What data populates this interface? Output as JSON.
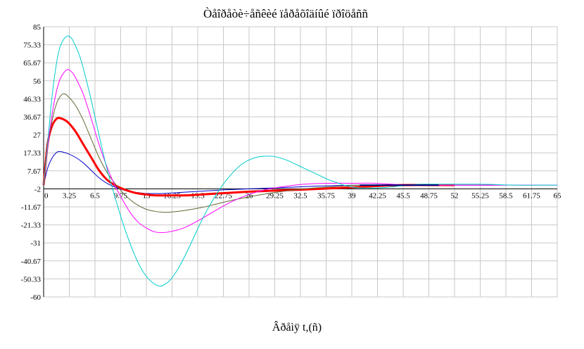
{
  "chart_data": {
    "type": "line",
    "title": "Òåîðåòè÷åñêèé ïåðåõîäíûé ïðîöåññ",
    "xlabel": "Âðåìÿ t,(ñ)",
    "ylabel": "",
    "xlim": [
      0,
      65
    ],
    "ylim": [
      -60,
      85
    ],
    "grid": true,
    "x_ticks": [
      "0",
      "3.25",
      "6.5",
      "9.75",
      "13",
      "16.25",
      "19.5",
      "22.75",
      "26",
      "29.25",
      "32.5",
      "35.75",
      "39",
      "42.25",
      "45.5",
      "48.75",
      "52",
      "55.25",
      "58.5",
      "61.75",
      "65"
    ],
    "y_ticks": [
      "85",
      "75.33",
      "65.67",
      "56",
      "46.33",
      "36.67",
      "27",
      "17.33",
      "7.67",
      "-2",
      "-11.67",
      "-21.33",
      "-31",
      "-40.67",
      "-50.33",
      "-60"
    ],
    "zero_line_y": -2,
    "series": [
      {
        "color": "#0000cc",
        "width": 1,
        "x_end": 57,
        "x": [
          0,
          0.5,
          1,
          1.5,
          2,
          3,
          4,
          5,
          6,
          7,
          8,
          9,
          10,
          11,
          12,
          13,
          14,
          15,
          17,
          19,
          21,
          23,
          26,
          29,
          32,
          35,
          40,
          45,
          50,
          57
        ],
        "y": [
          0,
          9,
          14,
          17,
          18,
          17,
          15,
          12,
          8,
          4,
          1,
          -1,
          -2.5,
          -3.5,
          -4,
          -4.5,
          -4.5,
          -4.5,
          -4,
          -3.5,
          -3,
          -2.5,
          -2,
          -1.5,
          -1,
          -0.5,
          0,
          0,
          0,
          0
        ]
      },
      {
        "color": "#ff0000",
        "width": 3,
        "x_end": 52,
        "x": [
          0,
          0.5,
          1,
          1.5,
          2,
          3,
          4,
          5,
          6,
          7,
          8,
          9,
          10,
          11,
          12,
          13,
          14,
          16,
          18,
          20,
          22,
          24,
          26,
          29,
          32,
          35,
          40,
          45,
          52
        ],
        "y": [
          0,
          22,
          31,
          35,
          36,
          34,
          29,
          22,
          15,
          8,
          3,
          0,
          -2,
          -3.5,
          -4.5,
          -5,
          -5.5,
          -5.5,
          -5.5,
          -5,
          -4.5,
          -4,
          -3.5,
          -3,
          -2.5,
          -2,
          -1,
          0,
          0
        ]
      },
      {
        "color": "#666633",
        "width": 1,
        "x_end": 58,
        "x": [
          0,
          0.5,
          1,
          1.5,
          2,
          2.5,
          3,
          4,
          5,
          6,
          7,
          8,
          9,
          10,
          11,
          12,
          13,
          14,
          15,
          16,
          18,
          20,
          22,
          24,
          27,
          30,
          33,
          36,
          40,
          45,
          50,
          58
        ],
        "y": [
          0,
          20,
          33,
          42,
          47,
          49,
          48,
          43,
          35,
          25,
          15,
          7,
          1,
          -4,
          -8,
          -11,
          -13,
          -14,
          -14.5,
          -14.5,
          -13.5,
          -12,
          -10,
          -8,
          -5.5,
          -3.5,
          -2,
          -1,
          0,
          0,
          0,
          0
        ]
      },
      {
        "color": "#ff00ff",
        "width": 1,
        "x_end": 65,
        "x": [
          0,
          0.5,
          1,
          1.5,
          2,
          2.5,
          3,
          3.5,
          4,
          5,
          6,
          7,
          8,
          9,
          10,
          11,
          12,
          13,
          14,
          15,
          16,
          17,
          18,
          20,
          22,
          24,
          26,
          28,
          30,
          33,
          36,
          39,
          42,
          46,
          50,
          55,
          60,
          65
        ],
        "y": [
          0,
          20,
          36,
          48,
          56,
          60,
          62,
          61,
          58,
          49,
          36,
          22,
          10,
          0,
          -8,
          -15,
          -20,
          -23,
          -25,
          -25.5,
          -25,
          -24,
          -22.5,
          -18,
          -13,
          -8.5,
          -5,
          -2.5,
          -1,
          0.5,
          1,
          1,
          1,
          0,
          0,
          0,
          0,
          0
        ]
      },
      {
        "color": "#00cccc",
        "width": 1,
        "x_end": 65,
        "x": [
          0,
          0.5,
          1,
          1.5,
          2,
          2.5,
          3,
          3.5,
          4,
          4.5,
          5,
          6,
          7,
          8,
          9,
          10,
          11,
          12,
          13,
          14,
          14.5,
          15,
          16,
          17,
          18,
          19,
          20,
          21,
          22,
          23,
          24,
          25,
          26,
          27,
          28,
          29,
          30,
          31,
          32,
          33,
          34,
          35,
          36,
          37,
          38,
          39,
          40,
          42,
          44,
          46,
          48,
          50,
          55,
          60,
          65
        ],
        "y": [
          0,
          22,
          45,
          62,
          73,
          78,
          80,
          79,
          75,
          70,
          63,
          46,
          27,
          9,
          -6,
          -20,
          -32,
          -42,
          -49,
          -53,
          -54,
          -54,
          -51,
          -45,
          -37,
          -28,
          -19,
          -11,
          -4,
          2,
          7,
          11,
          13.5,
          15,
          15.5,
          15.5,
          14.5,
          13,
          11,
          9,
          7,
          5,
          3,
          1.5,
          0,
          -1,
          -1.5,
          -1.5,
          -1,
          0,
          0.5,
          0.5,
          0.5,
          0,
          0
        ]
      },
      {
        "color": "#000080",
        "width": 2,
        "x_end": 50,
        "x": [
          40,
          50
        ],
        "y": [
          0,
          0
        ]
      }
    ]
  }
}
